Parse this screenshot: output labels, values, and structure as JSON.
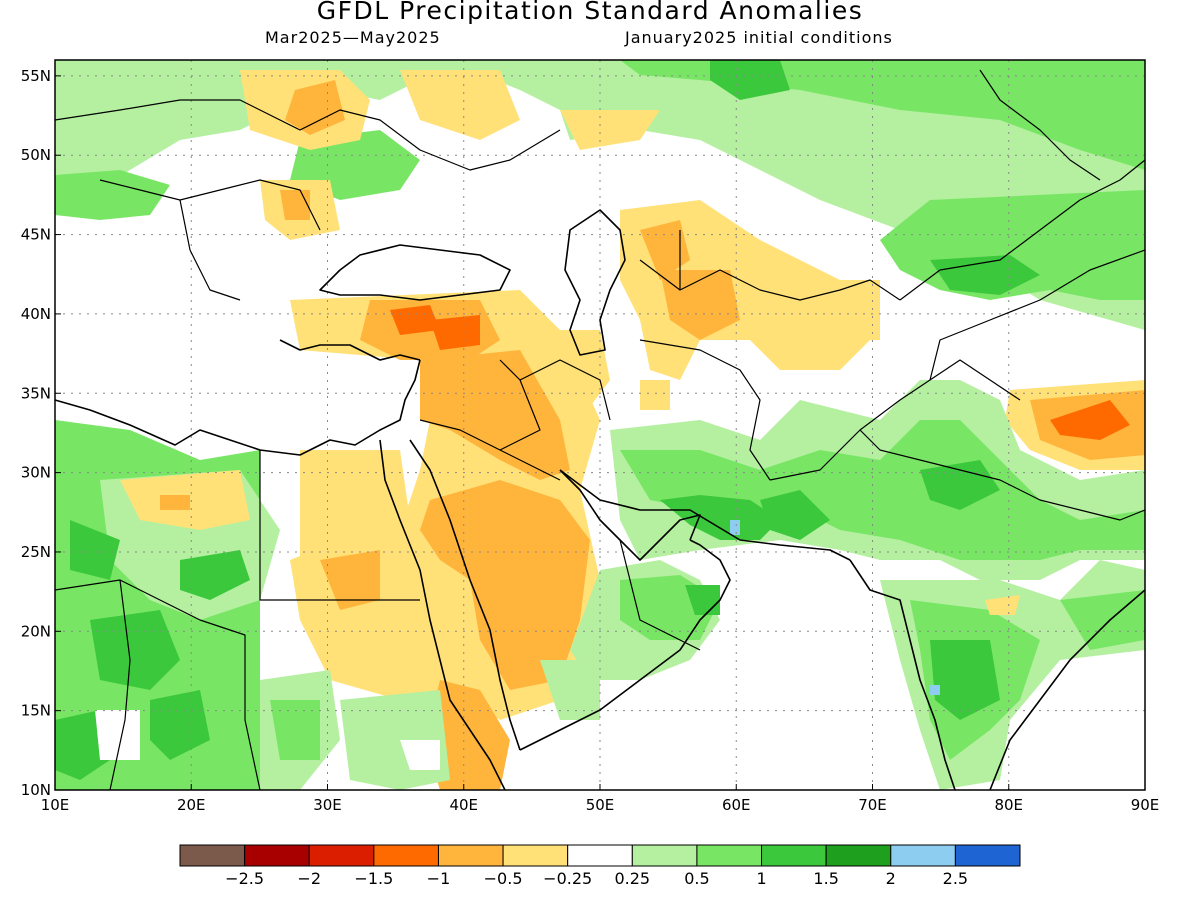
{
  "title": "GFDL Precipitation Standard Anomalies",
  "subtitle_left": "Mar2025—May2025",
  "subtitle_right": "January2025 initial conditions",
  "map": {
    "lon_range": [
      10,
      90
    ],
    "lat_range": [
      10,
      56
    ],
    "lon_ticks": [
      "10E",
      "20E",
      "30E",
      "40E",
      "50E",
      "60E",
      "70E",
      "80E",
      "90E"
    ],
    "lat_ticks": [
      "10N",
      "15N",
      "20N",
      "25N",
      "30N",
      "35N",
      "40N",
      "45N",
      "50N",
      "55N"
    ],
    "gridlines": "dotted"
  },
  "colorbar": {
    "colors": [
      "#7b5a4b",
      "#a80000",
      "#dc1e00",
      "#ff6a00",
      "#ffb43c",
      "#ffe178",
      "#ffffff",
      "#b4f0a0",
      "#78e664",
      "#3cc83c",
      "#1ea01e",
      "#8ccdf0",
      "#1e64d2"
    ],
    "labels": [
      "−2.5",
      "−2",
      "−1.5",
      "−1",
      "−0.5",
      "−0.25",
      "0.25",
      "0.5",
      "1",
      "1.5",
      "2",
      "2.5"
    ]
  }
}
